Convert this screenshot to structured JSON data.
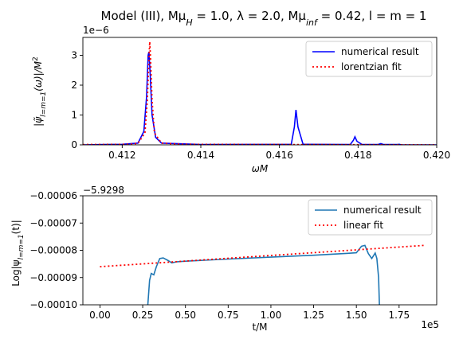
{
  "figure_title": "Model (III), Mμ_H = 1.0, λ = 2.0, Mμ_inf = 0.42, l = m = 1",
  "chart_data": [
    {
      "type": "line",
      "xlabel": "ωM",
      "ylabel": "|ψ̃_{l=m=1}(ω)|/M²",
      "axis_multiplier": "1e−6",
      "xlim": [
        0.411,
        0.42
      ],
      "ylim": [
        0,
        3.6
      ],
      "xticks": [
        "0.412",
        "0.414",
        "0.416",
        "0.418",
        "0.420"
      ],
      "yticks": [
        "0",
        "1",
        "2",
        "3"
      ],
      "grid": false,
      "legend_position": "top-right",
      "series": [
        {
          "name": "numerical result",
          "color": "#0000ff",
          "style": "solid",
          "points": [
            [
              0.411,
              0.0
            ],
            [
              0.4115,
              0.01
            ],
            [
              0.412,
              0.02
            ],
            [
              0.4124,
              0.06
            ],
            [
              0.41255,
              0.45
            ],
            [
              0.41262,
              1.6
            ],
            [
              0.41266,
              3.0
            ],
            [
              0.41268,
              3.12
            ],
            [
              0.41271,
              2.4
            ],
            [
              0.41276,
              1.0
            ],
            [
              0.41285,
              0.25
            ],
            [
              0.413,
              0.06
            ],
            [
              0.414,
              0.01
            ],
            [
              0.4163,
              0.02
            ],
            [
              0.41638,
              0.6
            ],
            [
              0.41642,
              1.17
            ],
            [
              0.41647,
              0.6
            ],
            [
              0.4166,
              0.02
            ],
            [
              0.4178,
              0.01
            ],
            [
              0.41788,
              0.15
            ],
            [
              0.41792,
              0.27
            ],
            [
              0.41797,
              0.12
            ],
            [
              0.4181,
              0.01
            ],
            [
              0.4185,
              0.01
            ],
            [
              0.41858,
              0.04
            ],
            [
              0.41865,
              0.01
            ],
            [
              0.419,
              0.01
            ],
            [
              0.41905,
              0.02
            ],
            [
              0.4191,
              0.0
            ],
            [
              0.42,
              0.0
            ]
          ]
        },
        {
          "name": "lorentzian fit",
          "color": "#ff0000",
          "style": "dotted",
          "points": [
            [
              0.411,
              0.01
            ],
            [
              0.4122,
              0.02
            ],
            [
              0.4124,
              0.05
            ],
            [
              0.41258,
              0.4
            ],
            [
              0.41264,
              1.5
            ],
            [
              0.41268,
              2.9
            ],
            [
              0.4127,
              3.45
            ],
            [
              0.41272,
              2.9
            ],
            [
              0.41276,
              1.5
            ],
            [
              0.41282,
              0.4
            ],
            [
              0.413,
              0.06
            ],
            [
              0.4135,
              0.02
            ],
            [
              0.42,
              0.0
            ]
          ]
        }
      ]
    },
    {
      "type": "line",
      "xlabel": "t/M",
      "ylabel": "Log|ψ_{l=m=1}(t)|",
      "axis_offset": "−5.9298",
      "axis_multiplier": "1e5",
      "xlim": [
        -0.1,
        1.97
      ],
      "ylim": [
        -0.0001,
        -6e-05
      ],
      "xticks": [
        "0.00",
        "0.25",
        "0.50",
        "0.75",
        "1.00",
        "1.25",
        "1.50",
        "1.75"
      ],
      "yticks": [
        "−0.00006",
        "−0.00007",
        "−0.00008",
        "−0.00009",
        "−0.00010"
      ],
      "grid": false,
      "legend_position": "top-right",
      "series": [
        {
          "name": "numerical result",
          "color": "#1f77b4",
          "style": "solid",
          "points": [
            [
              0.28,
              -0.0001
            ],
            [
              0.29,
              -9.1e-05
            ],
            [
              0.3,
              -8.85e-05
            ],
            [
              0.315,
              -8.9e-05
            ],
            [
              0.33,
              -8.6e-05
            ],
            [
              0.35,
              -8.3e-05
            ],
            [
              0.37,
              -8.28e-05
            ],
            [
              0.4,
              -8.38e-05
            ],
            [
              0.42,
              -8.46e-05
            ],
            [
              0.45,
              -8.42e-05
            ],
            [
              0.5,
              -8.4e-05
            ],
            [
              0.75,
              -8.32e-05
            ],
            [
              1.0,
              -8.25e-05
            ],
            [
              1.25,
              -8.18e-05
            ],
            [
              1.45,
              -8.11e-05
            ],
            [
              1.5,
              -8.09e-05
            ],
            [
              1.53,
              -7.85e-05
            ],
            [
              1.55,
              -7.82e-05
            ],
            [
              1.57,
              -8.12e-05
            ],
            [
              1.59,
              -8.3e-05
            ],
            [
              1.61,
              -8.1e-05
            ],
            [
              1.62,
              -8.3e-05
            ],
            [
              1.63,
              -9e-05
            ],
            [
              1.635,
              -0.0001
            ]
          ]
        },
        {
          "name": "linear fit",
          "color": "#ff0000",
          "style": "dotted",
          "points": [
            [
              0.0,
              -8.6e-05
            ],
            [
              1.9,
              -7.82e-05
            ]
          ]
        }
      ]
    }
  ]
}
